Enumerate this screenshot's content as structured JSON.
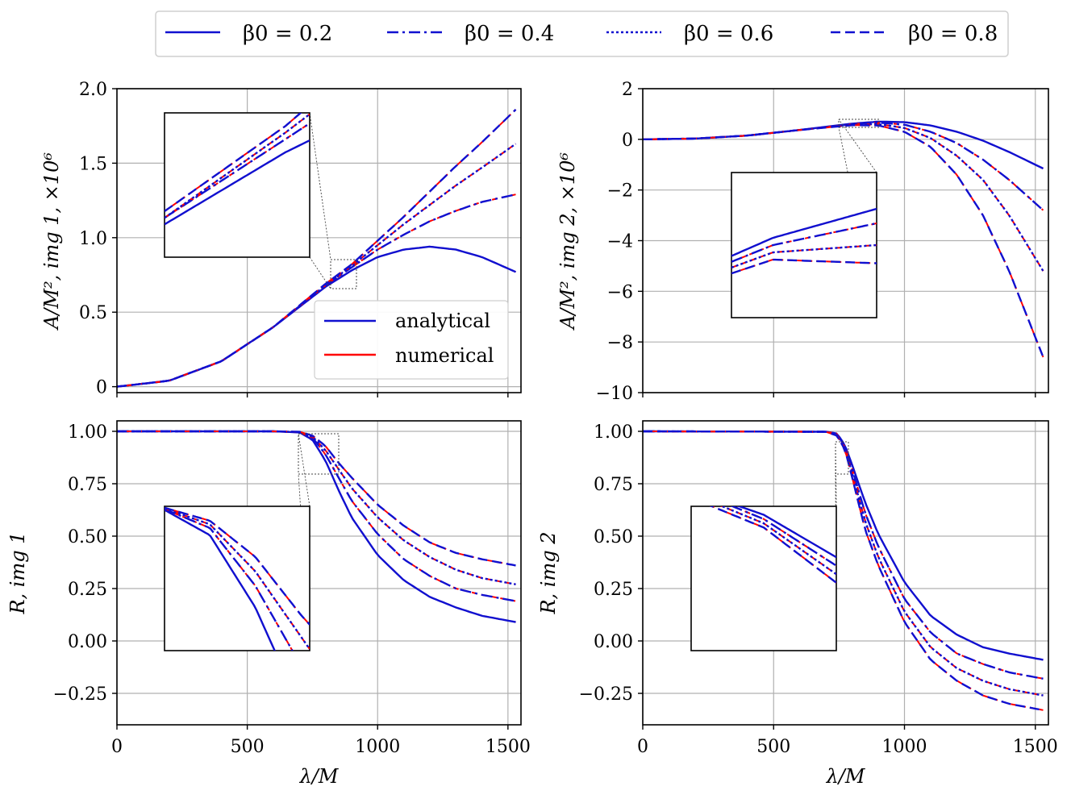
{
  "colors": {
    "analytical": "#1010d0",
    "numerical": "#ff0000",
    "grid": "#b0b0b0",
    "axis": "#000000"
  },
  "legend_top": {
    "entries": [
      {
        "label": "β0 = 0.2",
        "dash": "solid"
      },
      {
        "label": "β0 = 0.4",
        "dash": "dashdot"
      },
      {
        "label": "β0 = 0.6",
        "dash": "dotted"
      },
      {
        "label": "β0 = 0.8",
        "dash": "dashed"
      }
    ]
  },
  "legend_inner": {
    "analytical": "analytical",
    "numerical": "numerical"
  },
  "chart_data": [
    {
      "type": "line",
      "panel": "top-left",
      "xlabel": "",
      "ylabel": "A/M², img 1, ×10⁶",
      "xlim": [
        0,
        1550
      ],
      "ylim": [
        -0.04,
        2.0
      ],
      "xticks": [
        0,
        500,
        1000,
        1500
      ],
      "xtick_labels": [
        "",
        "",
        "",
        ""
      ],
      "yticks": [
        0,
        0.5,
        1.0,
        1.5,
        2.0
      ],
      "ytick_labels": [
        "0",
        "0.5",
        "1.0",
        "1.5",
        "2.0"
      ],
      "grid": true,
      "x": [
        0,
        200,
        400,
        600,
        800,
        900,
        1000,
        1100,
        1200,
        1300,
        1400,
        1530
      ],
      "series": [
        {
          "name": "β0 = 0.2",
          "dash": "solid",
          "values": [
            0,
            0.04,
            0.17,
            0.4,
            0.67,
            0.78,
            0.87,
            0.92,
            0.94,
            0.92,
            0.87,
            0.77
          ]
        },
        {
          "name": "β0 = 0.4",
          "dash": "dashdot",
          "values": [
            0,
            0.04,
            0.17,
            0.4,
            0.68,
            0.8,
            0.92,
            1.02,
            1.11,
            1.18,
            1.24,
            1.29
          ]
        },
        {
          "name": "β0 = 0.6",
          "dash": "dotted",
          "values": [
            0,
            0.04,
            0.17,
            0.4,
            0.68,
            0.81,
            0.95,
            1.09,
            1.22,
            1.35,
            1.47,
            1.63
          ]
        },
        {
          "name": "β0 = 0.8",
          "dash": "dashed",
          "values": [
            0,
            0.04,
            0.17,
            0.4,
            0.69,
            0.82,
            0.98,
            1.14,
            1.31,
            1.48,
            1.64,
            1.86
          ]
        }
      ],
      "legend": "inside lower-right"
    },
    {
      "type": "line",
      "panel": "top-right",
      "xlabel": "",
      "ylabel": "A/M², img 2, ×10⁶",
      "xlim": [
        0,
        1550
      ],
      "ylim": [
        -10,
        2
      ],
      "xticks": [
        0,
        500,
        1000,
        1500
      ],
      "xtick_labels": [
        "",
        "",
        "",
        ""
      ],
      "yticks": [
        -10,
        -8,
        -6,
        -4,
        -2,
        0,
        2
      ],
      "ytick_labels": [
        "−10",
        "−8",
        "−6",
        "−4",
        "−2",
        "0",
        "2"
      ],
      "grid": true,
      "x": [
        0,
        200,
        400,
        600,
        800,
        900,
        1000,
        1100,
        1200,
        1300,
        1400,
        1530
      ],
      "series": [
        {
          "name": "β0 = 0.2",
          "dash": "solid",
          "values": [
            0,
            0.03,
            0.15,
            0.37,
            0.62,
            0.7,
            0.68,
            0.55,
            0.3,
            -0.05,
            -0.5,
            -1.15
          ]
        },
        {
          "name": "β0 = 0.4",
          "dash": "dashdot",
          "values": [
            0,
            0.03,
            0.15,
            0.37,
            0.6,
            0.66,
            0.58,
            0.3,
            -0.15,
            -0.8,
            -1.6,
            -2.8
          ]
        },
        {
          "name": "β0 = 0.6",
          "dash": "dotted",
          "values": [
            0,
            0.03,
            0.15,
            0.37,
            0.58,
            0.6,
            0.45,
            0.05,
            -0.65,
            -1.6,
            -3.0,
            -5.2
          ]
        },
        {
          "name": "β0 = 0.8",
          "dash": "dashed",
          "values": [
            0,
            0.03,
            0.15,
            0.37,
            0.56,
            0.55,
            0.3,
            -0.3,
            -1.4,
            -3.0,
            -5.2,
            -8.6
          ]
        }
      ]
    },
    {
      "type": "line",
      "panel": "bottom-left",
      "xlabel": "λ/M",
      "ylabel": "R, img 1",
      "xlim": [
        0,
        1550
      ],
      "ylim": [
        -0.4,
        1.05
      ],
      "xticks": [
        0,
        500,
        1000,
        1500
      ],
      "xtick_labels": [
        "0",
        "500",
        "1000",
        "1500"
      ],
      "yticks": [
        -0.25,
        0,
        0.25,
        0.5,
        0.75,
        1.0
      ],
      "ytick_labels": [
        "−0.25",
        "0.00",
        "0.25",
        "0.50",
        "0.75",
        "1.00"
      ],
      "grid": true,
      "x": [
        0,
        600,
        700,
        750,
        800,
        850,
        900,
        1000,
        1100,
        1200,
        1300,
        1400,
        1530
      ],
      "series": [
        {
          "name": "β0 = 0.2",
          "dash": "solid",
          "values": [
            1.0,
            1.0,
            0.995,
            0.96,
            0.86,
            0.72,
            0.59,
            0.41,
            0.29,
            0.21,
            0.16,
            0.12,
            0.09
          ]
        },
        {
          "name": "β0 = 0.4",
          "dash": "dashdot",
          "values": [
            1.0,
            1.0,
            0.996,
            0.97,
            0.89,
            0.78,
            0.67,
            0.51,
            0.39,
            0.31,
            0.25,
            0.22,
            0.19
          ]
        },
        {
          "name": "β0 = 0.6",
          "dash": "dotted",
          "values": [
            1.0,
            1.0,
            0.997,
            0.975,
            0.91,
            0.82,
            0.73,
            0.59,
            0.48,
            0.4,
            0.34,
            0.3,
            0.27
          ]
        },
        {
          "name": "β0 = 0.8",
          "dash": "dashed",
          "values": [
            1.0,
            1.0,
            0.998,
            0.98,
            0.93,
            0.85,
            0.78,
            0.65,
            0.55,
            0.47,
            0.42,
            0.39,
            0.36
          ]
        }
      ]
    },
    {
      "type": "line",
      "panel": "bottom-right",
      "xlabel": "λ/M",
      "ylabel": "R, img 2",
      "xlim": [
        0,
        1550
      ],
      "ylim": [
        -0.4,
        1.05
      ],
      "xticks": [
        0,
        500,
        1000,
        1500
      ],
      "xtick_labels": [
        "0",
        "500",
        "1000",
        "1500"
      ],
      "yticks": [
        -0.25,
        0,
        0.25,
        0.5,
        0.75,
        1.0
      ],
      "ytick_labels": [
        "−0.25",
        "0.00",
        "0.25",
        "0.50",
        "0.75",
        "1.00"
      ],
      "grid": true,
      "x": [
        0,
        700,
        740,
        760,
        780,
        800,
        850,
        900,
        1000,
        1100,
        1200,
        1300,
        1400,
        1530
      ],
      "series": [
        {
          "name": "β0 = 0.2",
          "dash": "solid",
          "values": [
            1.0,
            0.998,
            0.99,
            0.96,
            0.91,
            0.84,
            0.66,
            0.51,
            0.28,
            0.12,
            0.03,
            -0.03,
            -0.06,
            -0.09
          ]
        },
        {
          "name": "β0 = 0.4",
          "dash": "dashdot",
          "values": [
            1.0,
            0.998,
            0.99,
            0.955,
            0.9,
            0.82,
            0.61,
            0.45,
            0.2,
            0.04,
            -0.06,
            -0.11,
            -0.15,
            -0.18
          ]
        },
        {
          "name": "β0 = 0.6",
          "dash": "dotted",
          "values": [
            1.0,
            0.998,
            0.985,
            0.95,
            0.89,
            0.8,
            0.57,
            0.4,
            0.14,
            -0.03,
            -0.13,
            -0.19,
            -0.23,
            -0.26
          ]
        },
        {
          "name": "β0 = 0.8",
          "dash": "dashed",
          "values": [
            1.0,
            0.998,
            0.98,
            0.945,
            0.88,
            0.78,
            0.53,
            0.36,
            0.09,
            -0.09,
            -0.19,
            -0.26,
            -0.3,
            -0.33
          ]
        }
      ]
    }
  ]
}
